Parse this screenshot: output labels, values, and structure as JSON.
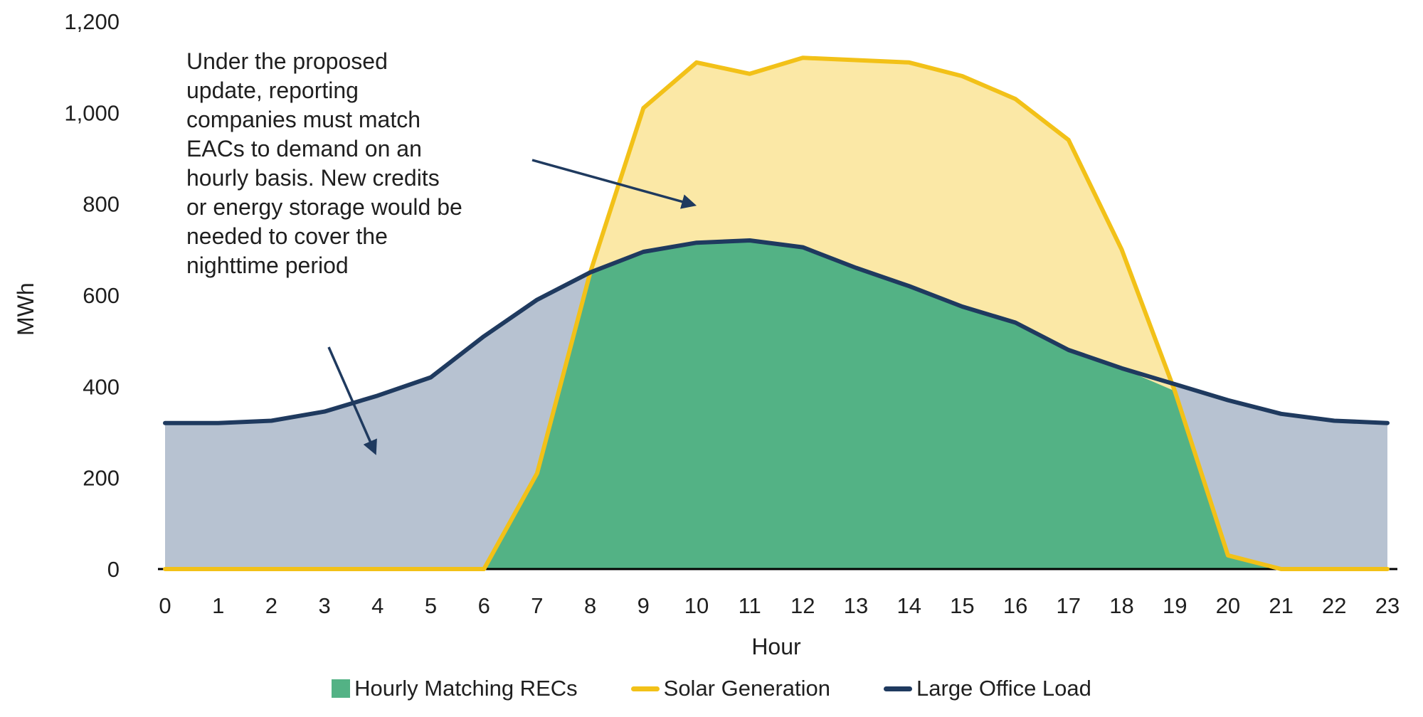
{
  "chart_data": {
    "type": "area",
    "title": "",
    "xlabel": "Hour",
    "ylabel": "MWh",
    "x": [
      0,
      1,
      2,
      3,
      4,
      5,
      6,
      7,
      8,
      9,
      10,
      11,
      12,
      13,
      14,
      15,
      16,
      17,
      18,
      19,
      20,
      21,
      22,
      23
    ],
    "ylim": [
      0,
      1200
    ],
    "yticks": [
      0,
      200,
      400,
      600,
      800,
      1000,
      1200
    ],
    "ytick_labels": [
      "0",
      "200",
      "400",
      "600",
      "800",
      "1,000",
      "1,200"
    ],
    "grid": false,
    "legend_position": "bottom",
    "axis_color": "#000000",
    "text_color": "#1f1f1f",
    "series": [
      {
        "key": "recs",
        "name": "Hourly Matching RECs",
        "type": "area",
        "color": "#53B285",
        "values": [
          0,
          0,
          0,
          0,
          0,
          0,
          0,
          210,
          650,
          695,
          715,
          720,
          705,
          660,
          620,
          575,
          540,
          480,
          440,
          390,
          30,
          0,
          0,
          0
        ]
      },
      {
        "key": "solar",
        "name": "Solar Generation",
        "type": "line",
        "color": "#F2C118",
        "fill": "#FBE8A6",
        "values": [
          0,
          0,
          0,
          0,
          0,
          0,
          0,
          210,
          650,
          1010,
          1110,
          1085,
          1120,
          1115,
          1110,
          1080,
          1030,
          940,
          700,
          390,
          30,
          0,
          0,
          0
        ]
      },
      {
        "key": "load",
        "name": "Large Office Load",
        "type": "line",
        "color": "#1F3A5F",
        "fill": "#B7C2D1",
        "values": [
          320,
          320,
          325,
          345,
          380,
          420,
          510,
          590,
          650,
          695,
          715,
          720,
          705,
          660,
          620,
          575,
          540,
          480,
          440,
          405,
          370,
          340,
          325,
          320
        ]
      }
    ]
  },
  "annotation": {
    "text": "Under the proposed\nupdate, reporting\ncompanies must match\nEACs to demand on an\nhourly basis. New credits\nor energy storage would be\nneeded to cover the\nnighttime period"
  }
}
